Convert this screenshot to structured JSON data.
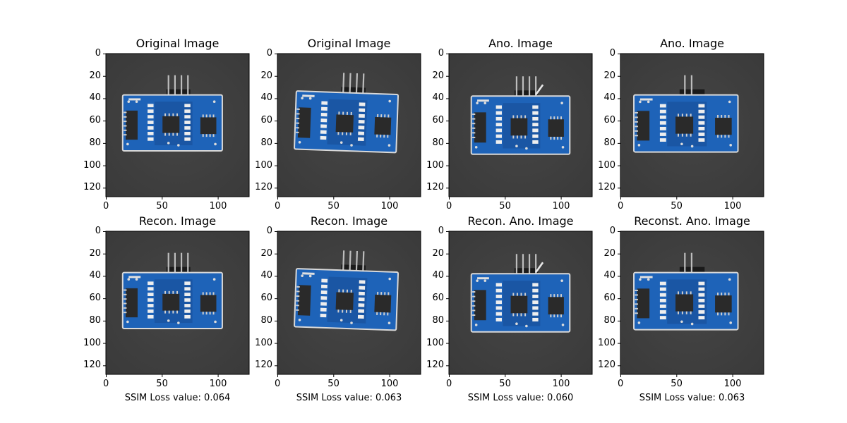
{
  "figure": {
    "panels": [
      {
        "title": "Original Image",
        "variant": "a",
        "anomaly": "none"
      },
      {
        "title": "Original Image",
        "variant": "b",
        "anomaly": "none"
      },
      {
        "title": "Ano. Image",
        "variant": "c",
        "anomaly": "bent-pin"
      },
      {
        "title": "Ano. Image",
        "variant": "d",
        "anomaly": "missing-pins"
      },
      {
        "title": "Recon. Image",
        "variant": "a",
        "anomaly": "none",
        "caption": "SSIM Loss value: 0.064"
      },
      {
        "title": "Recon. Image",
        "variant": "b",
        "anomaly": "none",
        "caption": "SSIM Loss value: 0.063"
      },
      {
        "title": "Recon. Ano. Image",
        "variant": "c",
        "anomaly": "bent-pin",
        "caption": "SSIM Loss value: 0.060"
      },
      {
        "title": "Reconst. Ano. Image",
        "variant": "d",
        "anomaly": "missing-pins",
        "caption": "SSIM Loss value: 0.063"
      }
    ],
    "y_ticks": [
      "0",
      "20",
      "40",
      "60",
      "80",
      "100",
      "120"
    ],
    "x_ticks": [
      "0",
      "50",
      "100"
    ],
    "image_size": 128,
    "colors": {
      "background": "#3a3a3a",
      "board": "#1e63b8",
      "board_dark": "#174f96",
      "chip": "#2a2a2a",
      "pin": "#bdbdbd",
      "frame": "#d9d9d9"
    }
  }
}
